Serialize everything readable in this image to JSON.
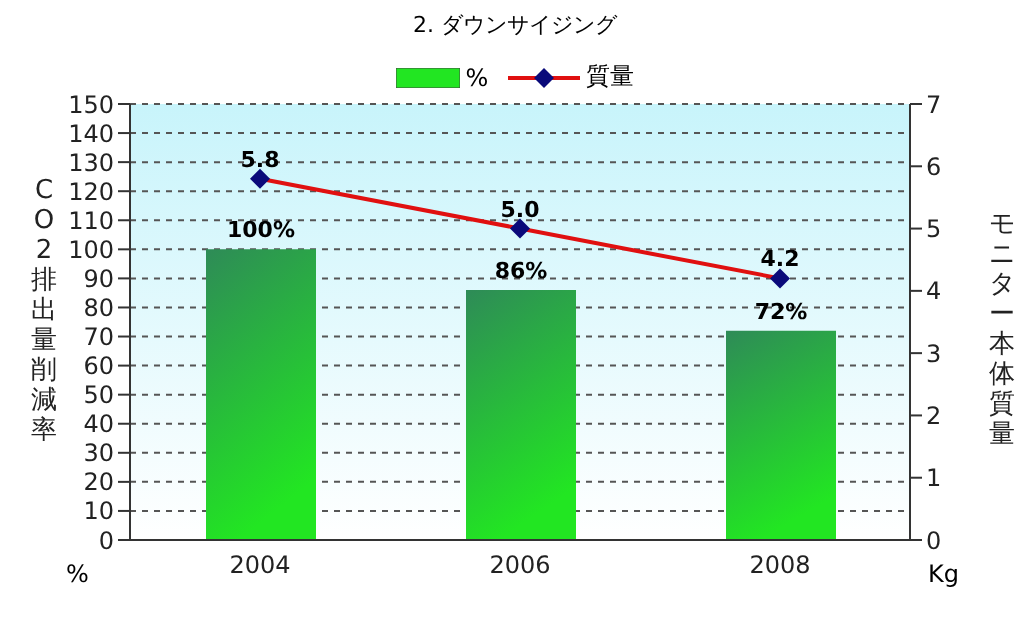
{
  "chart_data": {
    "type": "bar",
    "title": "2. ダウンサイジング",
    "categories": [
      "2004",
      "2006",
      "2008"
    ],
    "series": [
      {
        "name": "%",
        "color": "#22e622",
        "values": [
          100,
          86,
          72
        ],
        "value_labels": [
          "100%",
          "86%",
          "72%"
        ]
      },
      {
        "name": "質量",
        "type": "line",
        "axis": "y2",
        "color": "#e01010",
        "values": [
          5.8,
          5.0,
          4.2
        ],
        "value_labels": [
          "5.8",
          "5.0",
          "4.2"
        ],
        "marker": "diamond"
      }
    ],
    "ylabel": "CO2排出量削減率",
    "y2label": "モニター本体質量",
    "ylim": [
      0,
      150
    ],
    "yticks": [
      0,
      10,
      20,
      30,
      40,
      50,
      60,
      70,
      80,
      90,
      100,
      110,
      120,
      130,
      140,
      150
    ],
    "y2lim": [
      0,
      7
    ],
    "y2ticks": [
      0,
      1,
      2,
      3,
      4,
      5,
      6,
      7
    ],
    "grid": "y",
    "legend": "top",
    "annotations": [
      "%",
      "Kg"
    ]
  }
}
